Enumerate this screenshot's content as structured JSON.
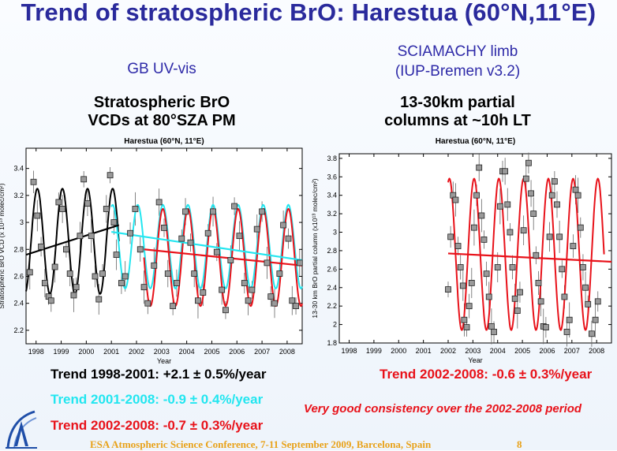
{
  "slide": {
    "title": "Trend of stratospheric BrO: Harestua (60°N,11°E)",
    "left_heading": "GB UV-vis",
    "left_subheading_1": "Stratospheric BrO",
    "left_subheading_2": "VCDs at 80°SZA PM",
    "right_heading_1": "SCIAMACHY limb",
    "right_heading_2": "(IUP-Bremen v3.2)",
    "right_subheading_1": "13-30km partial",
    "right_subheading_2": "columns at ~10h LT",
    "trend_1998_2001": "Trend 1998-2001: +2.1 ± 0.5%/year",
    "trend_2001_2008": "Trend 2001-2008: -0.9  ± 0.4%/year",
    "trend_2002_2008_left": "Trend 2002-2008: -0.7  ± 0.3%/year",
    "trend_2002_2008_right": "Trend 2002-2008: -0.6  ± 0.3%/year",
    "consistency_note": "Very good consistency over the 2002-2008 period",
    "footer": "ESA Atmospheric Science Conference, 7-11 September 2009, Barcelona, Spain",
    "page_number": "8",
    "colors": {
      "title": "#2a2a9c",
      "trend_black": "#000000",
      "trend_cyan": "#22e6f0",
      "trend_red": "#e8121a",
      "footer": "#e8a21a"
    }
  },
  "chart_data": [
    {
      "type": "scatter",
      "title": "Harestua (60°N, 11°E)",
      "xlabel": "Year",
      "ylabel": "Stratospheric BrO VCD (x 10¹³ molec/cm²)",
      "xlim": [
        1997.6,
        2008.6
      ],
      "ylim": [
        2.1,
        3.55
      ],
      "xticks": [
        1998,
        1999,
        2000,
        2001,
        2002,
        2003,
        2004,
        2005,
        2006,
        2007,
        2008
      ],
      "yticks": [
        2.2,
        2.4,
        2.6,
        2.8,
        3.0,
        3.2,
        3.4
      ],
      "ytick_labels": [
        "2.2",
        "2.4",
        "2.6",
        "2.8",
        "3",
        "3.2",
        "3.4"
      ],
      "series": [
        {
          "color": "#000000",
          "kind": "seasonal fit",
          "x_range": [
            1997.6,
            2001.3
          ],
          "mean": 2.86,
          "amplitude": 0.39,
          "peak_phase": 0.05
        },
        {
          "color": "#22e6f0",
          "kind": "seasonal fit",
          "x_range": [
            2001.0,
            2008.6
          ],
          "mean": 2.82,
          "amplitude": 0.31,
          "peak_phase": 0.05
        },
        {
          "color": "#e8121a",
          "kind": "seasonal fit",
          "x_range": [
            2002.3,
            2008.6
          ],
          "mean": 2.74,
          "amplitude": 0.36,
          "peak_phase": 0.05
        },
        {
          "color": "#000000",
          "kind": "linear trend",
          "x": [
            1997.6,
            2001.3
          ],
          "y": [
            2.76,
            2.98
          ]
        },
        {
          "color": "#22e6f0",
          "kind": "linear trend",
          "x": [
            2001.0,
            2008.6
          ],
          "y": [
            2.93,
            2.72
          ]
        },
        {
          "color": "#e8121a",
          "kind": "linear trend",
          "x": [
            2002.3,
            2008.6
          ],
          "y": [
            2.8,
            2.68
          ]
        }
      ],
      "points": [
        {
          "x": 1997.75,
          "y": 2.63
        },
        {
          "x": 1997.9,
          "y": 3.3
        },
        {
          "x": 1998.05,
          "y": 3.05
        },
        {
          "x": 1998.2,
          "y": 2.82
        },
        {
          "x": 1998.35,
          "y": 2.55
        },
        {
          "x": 1998.5,
          "y": 2.45
        },
        {
          "x": 1998.6,
          "y": 2.42
        },
        {
          "x": 1998.75,
          "y": 2.67
        },
        {
          "x": 1998.9,
          "y": 3.15
        },
        {
          "x": 1999.05,
          "y": 3.1
        },
        {
          "x": 1999.2,
          "y": 2.8
        },
        {
          "x": 1999.35,
          "y": 2.62
        },
        {
          "x": 1999.5,
          "y": 2.46
        },
        {
          "x": 1999.6,
          "y": 2.52
        },
        {
          "x": 1999.75,
          "y": 2.9
        },
        {
          "x": 1999.9,
          "y": 3.32
        },
        {
          "x": 2000.05,
          "y": 3.14
        },
        {
          "x": 2000.2,
          "y": 2.9
        },
        {
          "x": 2000.35,
          "y": 2.6
        },
        {
          "x": 2000.5,
          "y": 2.43
        },
        {
          "x": 2000.65,
          "y": 2.62
        },
        {
          "x": 2000.8,
          "y": 3.1
        },
        {
          "x": 2000.95,
          "y": 3.35
        },
        {
          "x": 2001.1,
          "y": 3.0
        },
        {
          "x": 2001.2,
          "y": 2.76
        },
        {
          "x": 2001.4,
          "y": 2.55
        },
        {
          "x": 2001.55,
          "y": 2.6
        },
        {
          "x": 2001.75,
          "y": 2.92
        },
        {
          "x": 2001.95,
          "y": 3.1
        },
        {
          "x": 2002.15,
          "y": 2.8
        },
        {
          "x": 2002.3,
          "y": 2.52
        },
        {
          "x": 2002.45,
          "y": 2.4
        },
        {
          "x": 2002.7,
          "y": 2.68
        },
        {
          "x": 2002.9,
          "y": 3.15
        },
        {
          "x": 2003.1,
          "y": 2.96
        },
        {
          "x": 2003.25,
          "y": 2.62
        },
        {
          "x": 2003.45,
          "y": 2.38
        },
        {
          "x": 2003.6,
          "y": 2.55
        },
        {
          "x": 2003.8,
          "y": 2.88
        },
        {
          "x": 2003.95,
          "y": 3.08
        },
        {
          "x": 2004.15,
          "y": 2.85
        },
        {
          "x": 2004.3,
          "y": 2.62
        },
        {
          "x": 2004.45,
          "y": 2.42
        },
        {
          "x": 2004.65,
          "y": 2.48
        },
        {
          "x": 2004.85,
          "y": 2.92
        },
        {
          "x": 2005.05,
          "y": 3.08
        },
        {
          "x": 2005.2,
          "y": 2.78
        },
        {
          "x": 2005.4,
          "y": 2.5
        },
        {
          "x": 2005.55,
          "y": 2.35
        },
        {
          "x": 2005.75,
          "y": 2.72
        },
        {
          "x": 2005.9,
          "y": 3.12
        },
        {
          "x": 2006.1,
          "y": 2.9
        },
        {
          "x": 2006.3,
          "y": 2.55
        },
        {
          "x": 2006.45,
          "y": 2.42
        },
        {
          "x": 2006.6,
          "y": 2.5
        },
        {
          "x": 2006.8,
          "y": 2.95
        },
        {
          "x": 2007.0,
          "y": 3.08
        },
        {
          "x": 2007.2,
          "y": 2.7
        },
        {
          "x": 2007.35,
          "y": 2.45
        },
        {
          "x": 2007.5,
          "y": 2.4
        },
        {
          "x": 2007.7,
          "y": 2.62
        },
        {
          "x": 2007.85,
          "y": 2.98
        },
        {
          "x": 2008.05,
          "y": 2.88
        },
        {
          "x": 2008.2,
          "y": 2.42
        },
        {
          "x": 2008.35,
          "y": 2.38
        },
        {
          "x": 2008.5,
          "y": 2.7
        }
      ]
    },
    {
      "type": "scatter",
      "title": "Harestua (60°N, 11°E)",
      "xlabel": "Year",
      "ylabel": "13-30 km BrO partial column (x10¹³ molec/cm²)",
      "xlim": [
        1997.6,
        2008.6
      ],
      "ylim": [
        1.8,
        3.85
      ],
      "xticks": [
        1998,
        1999,
        2000,
        2001,
        2002,
        2003,
        2004,
        2005,
        2006,
        2007,
        2008
      ],
      "yticks": [
        1.8,
        2.0,
        2.2,
        2.4,
        2.6,
        2.8,
        3.0,
        3.2,
        3.4,
        3.6,
        3.8
      ],
      "ytick_labels": [
        "1.8",
        "2",
        "2.2",
        "2.4",
        "2.6",
        "2.8",
        "3",
        "3.2",
        "3.4",
        "3.6",
        "3.8"
      ],
      "series": [
        {
          "color": "#e8121a",
          "kind": "seasonal fit",
          "x_range": [
            2002.0,
            2008.3
          ],
          "mean": 2.76,
          "amplitude": 0.82,
          "peak_phase": 0.05
        },
        {
          "color": "#e8121a",
          "kind": "linear trend",
          "x": [
            2002.0,
            2008.6
          ],
          "y": [
            2.77,
            2.68
          ]
        }
      ],
      "points": [
        {
          "x": 2002.0,
          "y": 2.38
        },
        {
          "x": 2002.1,
          "y": 2.95
        },
        {
          "x": 2002.2,
          "y": 3.4
        },
        {
          "x": 2002.3,
          "y": 3.35
        },
        {
          "x": 2002.4,
          "y": 2.85
        },
        {
          "x": 2002.5,
          "y": 2.62
        },
        {
          "x": 2002.6,
          "y": 2.42
        },
        {
          "x": 2002.65,
          "y": 2.05
        },
        {
          "x": 2002.75,
          "y": 1.97
        },
        {
          "x": 2002.85,
          "y": 2.2
        },
        {
          "x": 2002.95,
          "y": 2.45
        },
        {
          "x": 2003.05,
          "y": 3.05
        },
        {
          "x": 2003.15,
          "y": 3.4
        },
        {
          "x": 2003.25,
          "y": 3.7
        },
        {
          "x": 2003.35,
          "y": 3.18
        },
        {
          "x": 2003.45,
          "y": 2.92
        },
        {
          "x": 2003.55,
          "y": 2.55
        },
        {
          "x": 2003.65,
          "y": 2.3
        },
        {
          "x": 2003.75,
          "y": 1.98
        },
        {
          "x": 2003.85,
          "y": 1.92
        },
        {
          "x": 2004.0,
          "y": 2.62
        },
        {
          "x": 2004.1,
          "y": 3.28
        },
        {
          "x": 2004.2,
          "y": 3.66
        },
        {
          "x": 2004.3,
          "y": 3.66
        },
        {
          "x": 2004.4,
          "y": 3.3
        },
        {
          "x": 2004.5,
          "y": 3.0
        },
        {
          "x": 2004.6,
          "y": 2.62
        },
        {
          "x": 2004.7,
          "y": 2.28
        },
        {
          "x": 2004.8,
          "y": 2.15
        },
        {
          "x": 2004.9,
          "y": 2.35
        },
        {
          "x": 2005.05,
          "y": 3.02
        },
        {
          "x": 2005.15,
          "y": 3.58
        },
        {
          "x": 2005.25,
          "y": 3.75
        },
        {
          "x": 2005.35,
          "y": 3.42
        },
        {
          "x": 2005.45,
          "y": 3.2
        },
        {
          "x": 2005.55,
          "y": 2.75
        },
        {
          "x": 2005.65,
          "y": 2.45
        },
        {
          "x": 2005.75,
          "y": 2.25
        },
        {
          "x": 2005.85,
          "y": 1.98
        },
        {
          "x": 2005.95,
          "y": 1.97
        },
        {
          "x": 2006.1,
          "y": 2.95
        },
        {
          "x": 2006.2,
          "y": 3.4
        },
        {
          "x": 2006.3,
          "y": 3.55
        },
        {
          "x": 2006.4,
          "y": 3.3
        },
        {
          "x": 2006.5,
          "y": 2.95
        },
        {
          "x": 2006.6,
          "y": 2.6
        },
        {
          "x": 2006.7,
          "y": 2.3
        },
        {
          "x": 2006.8,
          "y": 1.92
        },
        {
          "x": 2006.9,
          "y": 2.05
        },
        {
          "x": 2007.05,
          "y": 2.85
        },
        {
          "x": 2007.15,
          "y": 3.46
        },
        {
          "x": 2007.25,
          "y": 3.4
        },
        {
          "x": 2007.35,
          "y": 3.05
        },
        {
          "x": 2007.45,
          "y": 2.62
        },
        {
          "x": 2007.55,
          "y": 2.4
        },
        {
          "x": 2007.65,
          "y": 2.22
        },
        {
          "x": 2007.8,
          "y": 1.9
        },
        {
          "x": 2007.95,
          "y": 2.05
        },
        {
          "x": 2008.05,
          "y": 2.25
        }
      ]
    }
  ]
}
